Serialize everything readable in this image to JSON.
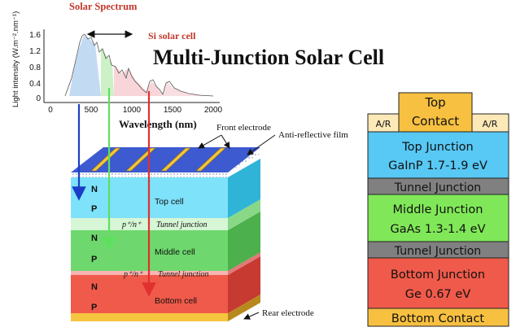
{
  "title": "Multi-Junction Solar Cell",
  "spectrum": {
    "label": "Solar Spectrum",
    "si_label": "Si solar cell",
    "ylabel": "Light intensity (W.m⁻².nm⁻¹)",
    "xlabel": "Wavelength (nm)",
    "yticks": [
      "1.6",
      "1.2",
      "0.8",
      "0.4",
      "0"
    ],
    "xticks": [
      "0",
      "500",
      "1000",
      "1500",
      "2000"
    ]
  },
  "cell3d": {
    "front_electrode": "Front electrode",
    "anti_reflective": "Anti-reflective film",
    "rear_electrode": "Rear electrode",
    "n": "N",
    "p": "P",
    "top_cell": "Top cell",
    "middle_cell": "Middle cell",
    "bottom_cell": "Bottom cell",
    "tunnel_prefix": "p⁺/n⁺",
    "tunnel_junction": "Tunnel junction"
  },
  "stack": {
    "top_contact_1": "Top",
    "top_contact_2": "Contact",
    "ar": "A/R",
    "top_junction": "Top Junction",
    "top_material": "GaInP 1.7-1.9 eV",
    "tunnel": "Tunnel Junction",
    "middle_junction": "Middle Junction",
    "middle_material": "GaAs 1.3-1.4 eV",
    "bottom_junction": "Bottom Junction",
    "bottom_material": "Ge 0.67 eV",
    "bottom_contact": "Bottom Contact"
  },
  "colors": {
    "top": "#58c8f4",
    "tunnel": "#808080",
    "middle": "#80e858",
    "bottom": "#f05a4a",
    "contact": "#f8c040",
    "ar": "#fde9b8",
    "spectrum_red": "#c0392b",
    "arrow_blue": "#1a3ec8",
    "arrow_green": "#5ee05e",
    "arrow_red": "#e03030"
  }
}
